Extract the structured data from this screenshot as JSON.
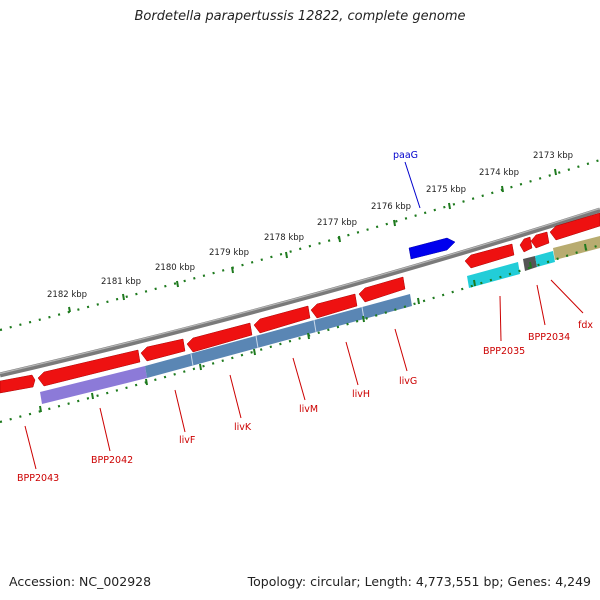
{
  "title": "Bordetella parapertussis 12822, complete genome",
  "footer": {
    "accession": "Accession: NC_002928",
    "summary": "Topology: circular; Length: 4,773,551 bp; Genes: 4,249"
  },
  "ruler_labels": [
    "2182 kbp",
    "2181 kbp",
    "2180 kbp",
    "2179 kbp",
    "2178 kbp",
    "2177 kbp",
    "2176 kbp",
    "2175 kbp",
    "2174 kbp",
    "2173 kbp"
  ],
  "genes_forward": [
    "paaG"
  ],
  "genes_reverse": [
    "BPP2043",
    "BPP2042",
    "livF",
    "livK",
    "livM",
    "livH",
    "livG",
    "BPP2035",
    "BPP2034",
    "fdx"
  ],
  "colors": {
    "backbone": "#7a7a7a",
    "cds": "#ee1111",
    "forward_gene": "#0000ee",
    "label_forward": "#0000cc",
    "label_reverse": "#cc0000",
    "tick": "#1e7a1e",
    "feature_violet": "#8c7ad8",
    "feature_steel": "#5a86b4",
    "feature_cyan": "#22cdd8",
    "feature_olive": "#b8ac70",
    "feature_gray": "#555555"
  }
}
